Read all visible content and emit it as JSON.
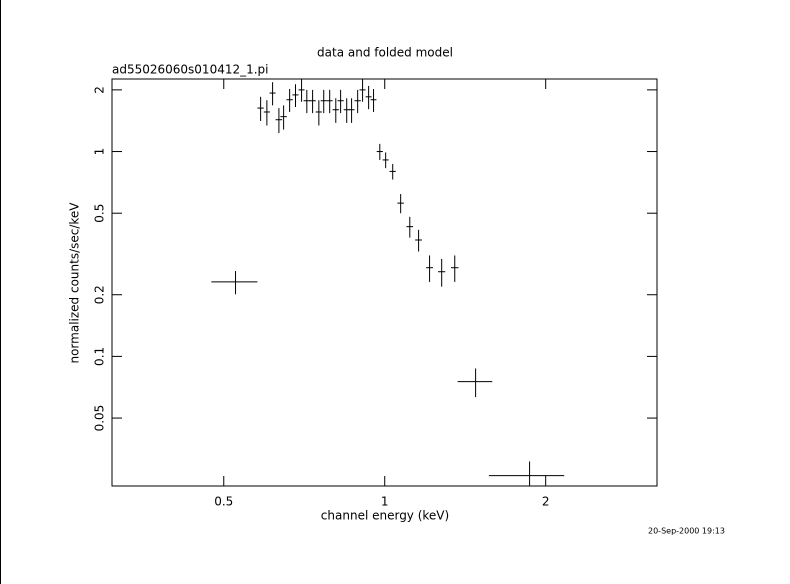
{
  "chart_data": {
    "type": "scatter",
    "title": "data and folded model",
    "subtitle": "ad55026060s010412_1.pi",
    "xlabel": "channel energy (keV)",
    "ylabel": "normalized counts/sec/keV",
    "color": "#000000",
    "xscale": "log",
    "yscale": "log",
    "xlim": [
      0.309,
      3.23
    ],
    "ylim": [
      0.0233,
      2.26
    ],
    "xticks": [
      0.5,
      1,
      2
    ],
    "yticks": [
      0.05,
      0.1,
      0.2,
      0.5,
      1,
      2
    ],
    "x": [
      0.526,
      0.586,
      0.602,
      0.617,
      0.634,
      0.647,
      0.664,
      0.681,
      0.699,
      0.715,
      0.733,
      0.753,
      0.769,
      0.789,
      0.81,
      0.827,
      0.849,
      0.867,
      0.89,
      0.909,
      0.933,
      0.953,
      0.979,
      1.004,
      1.035,
      1.071,
      1.114,
      1.157,
      1.213,
      1.278,
      1.352,
      1.479,
      1.866
    ],
    "xerr": [
      0.052,
      0.008,
      0.008,
      0.008,
      0.009,
      0.009,
      0.009,
      0.009,
      0.009,
      0.01,
      0.01,
      0.01,
      0.01,
      0.01,
      0.011,
      0.011,
      0.011,
      0.011,
      0.012,
      0.012,
      0.012,
      0.012,
      0.013,
      0.013,
      0.014,
      0.015,
      0.016,
      0.017,
      0.018,
      0.02,
      0.022,
      0.11,
      0.3
    ],
    "values": [
      0.231,
      1.63,
      1.56,
      1.93,
      1.43,
      1.48,
      1.79,
      1.89,
      2.0,
      1.77,
      1.77,
      1.56,
      1.77,
      1.77,
      1.6,
      1.77,
      1.6,
      1.6,
      1.77,
      2.0,
      1.85,
      1.79,
      1.0,
      0.91,
      0.8,
      0.56,
      0.43,
      0.37,
      0.271,
      0.259,
      0.271,
      0.0753,
      0.0262
    ],
    "yerr": [
      0.03,
      0.22,
      0.22,
      0.25,
      0.2,
      0.2,
      0.23,
      0.24,
      0.25,
      0.23,
      0.23,
      0.22,
      0.23,
      0.23,
      0.22,
      0.23,
      0.22,
      0.22,
      0.23,
      0.25,
      0.24,
      0.23,
      0.09,
      0.08,
      0.07,
      0.06,
      0.05,
      0.045,
      0.04,
      0.04,
      0.04,
      0.012,
      0.0045
    ]
  },
  "footer": {
    "timestamp": "20-Sep-2000 19:13"
  }
}
